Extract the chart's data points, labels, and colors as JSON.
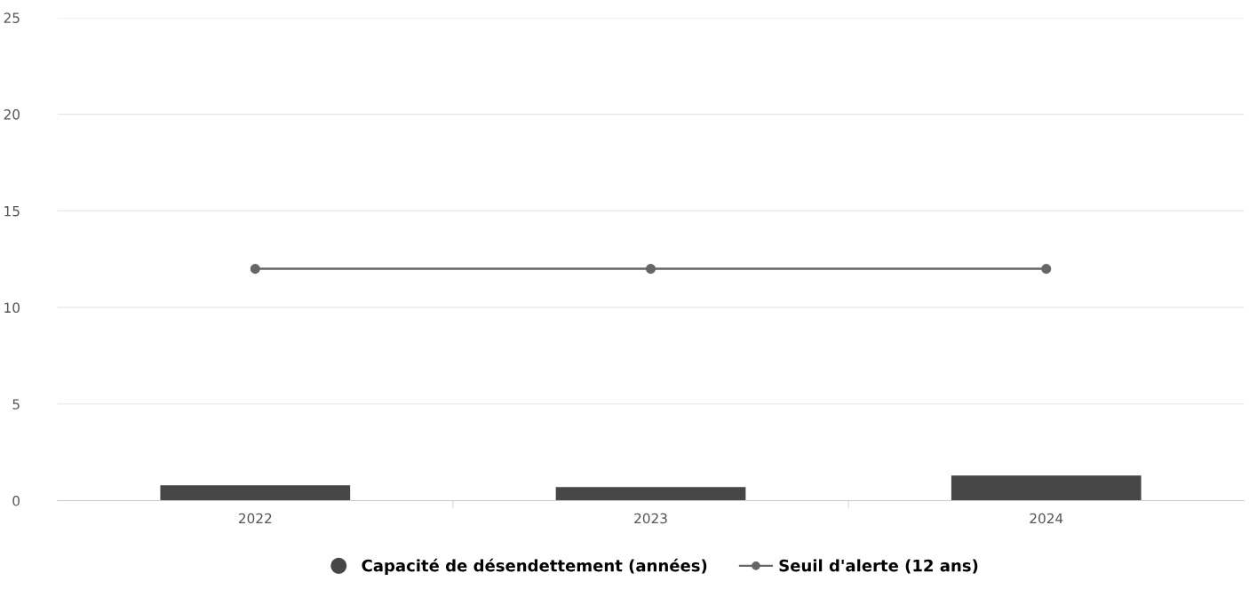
{
  "chart_data": {
    "type": "bar",
    "categories": [
      "2022",
      "2023",
      "2024"
    ],
    "series": [
      {
        "name": "Capacité de désendettement (années)",
        "color": "#474747",
        "values": [
          0.8,
          0.7,
          1.3
        ]
      },
      {
        "name": "Seuil d'alerte (12 ans)",
        "type": "line",
        "color": "#666666",
        "values": [
          12,
          12,
          12
        ],
        "marker": "circle"
      }
    ],
    "ylim": [
      0,
      25
    ],
    "yticks": [
      0,
      5,
      10,
      15,
      20,
      25
    ],
    "grid": "y",
    "legend": "bottom"
  }
}
